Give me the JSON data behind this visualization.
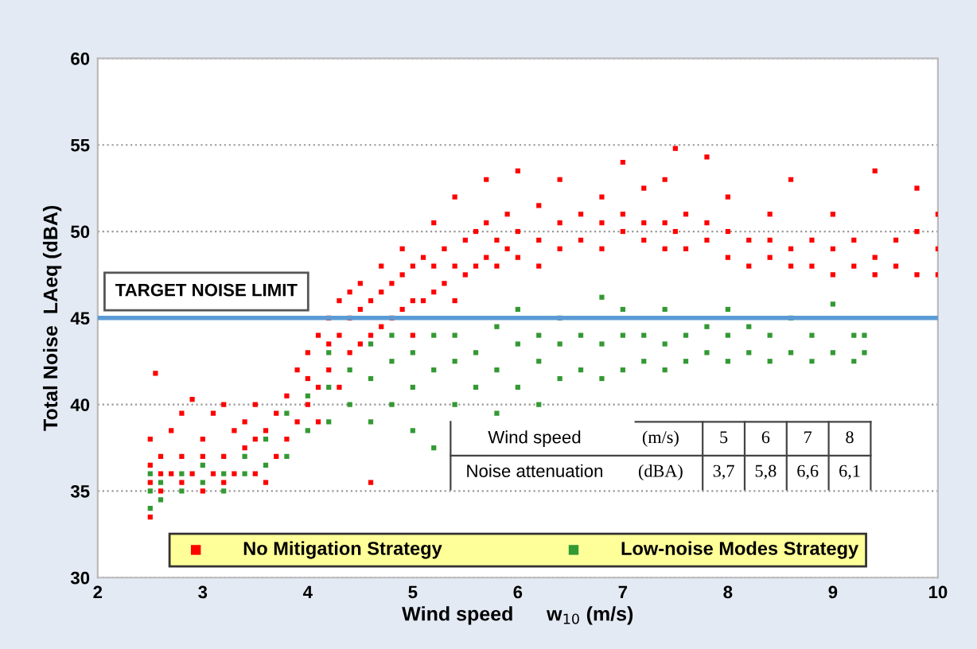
{
  "chart_data": {
    "type": "scatter",
    "xlabel": "Wind speed      w$_{10}$ (m/s)",
    "ylabel": "Total Noise  LAeq (dBA)",
    "xlim": [
      2,
      10
    ],
    "xticks": [
      2,
      3,
      4,
      5,
      6,
      7,
      8,
      9,
      10
    ],
    "ylim": [
      30,
      60
    ],
    "yticks": [
      30,
      35,
      40,
      45,
      50,
      55,
      60
    ],
    "grid": "y",
    "legend": "bottom",
    "marker": "square",
    "ref_lines": [
      {
        "axis": "y",
        "value": 45,
        "label": "TARGET NOISE LIMIT",
        "color": "#5b9bd5",
        "line_style": "solid"
      }
    ],
    "annotations": [
      "Wind speed",
      "(m/s)",
      "5",
      "6",
      "7",
      "8",
      "Noise attenuation",
      "(dBA)",
      "3,7",
      "5,8",
      "6,6",
      "6,1"
    ],
    "series": [
      {
        "name": "No Mitigation Strategy",
        "color": "#ff0000",
        "x": [
          2.5,
          2.5,
          2.5,
          2.5,
          2.55,
          2.6,
          2.6,
          2.6,
          2.7,
          2.7,
          2.8,
          2.8,
          2.8,
          2.9,
          2.9,
          3.0,
          3.0,
          3.0,
          3.1,
          3.1,
          3.2,
          3.2,
          3.2,
          3.3,
          3.3,
          3.4,
          3.4,
          3.5,
          3.5,
          3.5,
          3.6,
          3.6,
          3.7,
          3.7,
          3.8,
          3.8,
          3.9,
          3.9,
          4.0,
          4.0,
          4.0,
          4.1,
          4.1,
          4.1,
          4.2,
          4.2,
          4.2,
          4.3,
          4.3,
          4.3,
          4.4,
          4.4,
          4.4,
          4.5,
          4.5,
          4.5,
          4.6,
          4.6,
          4.6,
          4.7,
          4.7,
          4.7,
          4.8,
          4.8,
          4.9,
          4.9,
          4.9,
          5.0,
          5.0,
          5.0,
          5.1,
          5.1,
          5.2,
          5.2,
          5.2,
          5.3,
          5.3,
          5.4,
          5.4,
          5.4,
          5.5,
          5.5,
          5.6,
          5.6,
          5.7,
          5.7,
          5.7,
          5.8,
          5.8,
          5.9,
          5.9,
          6.0,
          6.0,
          6.0,
          6.2,
          6.2,
          6.2,
          6.4,
          6.4,
          6.4,
          6.6,
          6.6,
          6.8,
          6.8,
          6.8,
          7.0,
          7.0,
          7.0,
          7.2,
          7.2,
          7.2,
          7.4,
          7.4,
          7.4,
          7.5,
          7.5,
          7.6,
          7.6,
          7.8,
          7.8,
          7.8,
          8.0,
          8.0,
          8.0,
          8.2,
          8.2,
          8.4,
          8.4,
          8.4,
          8.6,
          8.6,
          8.6,
          8.8,
          8.8,
          9.0,
          9.0,
          9.0,
          9.2,
          9.2,
          9.4,
          9.4,
          9.4,
          9.6,
          9.6,
          9.8,
          9.8,
          9.8,
          10.0,
          10.0,
          10.0
        ],
        "values": [
          33.5,
          35.5,
          36.5,
          38,
          41.8,
          35,
          36,
          37,
          36,
          38.5,
          35.5,
          37,
          39.5,
          36,
          40.3,
          35,
          37,
          38,
          36,
          39.5,
          35.5,
          37,
          40,
          36,
          38.5,
          37.5,
          39,
          36,
          38,
          40,
          35.5,
          38.5,
          37,
          39.5,
          38,
          40.5,
          39,
          42,
          40,
          41.5,
          43,
          39,
          41,
          44,
          42,
          43.5,
          45,
          41,
          44,
          46,
          43,
          45,
          46.5,
          43.5,
          45.5,
          47,
          35.5,
          44,
          46,
          44.5,
          46.5,
          48,
          45,
          47,
          45.5,
          47.5,
          49,
          44,
          46,
          48,
          46,
          48.5,
          46.5,
          48,
          50.5,
          47,
          49,
          46,
          48,
          52,
          47.5,
          49.5,
          48,
          50,
          48.5,
          50.5,
          53,
          48,
          49.5,
          49,
          51,
          48.5,
          50,
          53.5,
          48,
          49.5,
          51.5,
          49,
          50.5,
          53,
          49.5,
          51,
          49,
          50.5,
          52,
          50,
          51,
          54,
          49.5,
          50.5,
          52.5,
          49,
          50.5,
          53,
          50,
          54.8,
          49,
          51,
          49.5,
          50.5,
          54.3,
          48.5,
          50,
          52,
          48,
          49.5,
          48.5,
          49.5,
          51,
          48,
          49,
          53,
          48,
          49.5,
          47.5,
          49,
          51,
          48,
          49.5,
          47.5,
          48.5,
          53.5,
          48,
          49.5,
          47.5,
          50,
          52.5,
          47.5,
          49,
          51
        ]
      },
      {
        "name": "Low-noise Modes Strategy",
        "color": "#339933",
        "x": [
          2.5,
          2.5,
          2.5,
          2.6,
          2.6,
          2.8,
          2.8,
          3.0,
          3.0,
          3.2,
          3.2,
          3.4,
          3.4,
          3.6,
          3.6,
          3.8,
          3.8,
          4.0,
          4.0,
          4.2,
          4.2,
          4.2,
          4.4,
          4.4,
          4.6,
          4.6,
          4.6,
          4.8,
          4.8,
          4.8,
          5.0,
          5.0,
          5.0,
          5.2,
          5.2,
          5.2,
          5.4,
          5.4,
          5.4,
          5.6,
          5.6,
          5.8,
          5.8,
          5.8,
          6.0,
          6.0,
          6.0,
          6.2,
          6.2,
          6.2,
          6.4,
          6.4,
          6.4,
          6.6,
          6.6,
          6.8,
          6.8,
          6.8,
          7.0,
          7.0,
          7.0,
          7.2,
          7.2,
          7.4,
          7.4,
          7.4,
          7.6,
          7.6,
          7.8,
          7.8,
          8.0,
          8.0,
          8.0,
          8.2,
          8.2,
          8.4,
          8.4,
          8.6,
          8.6,
          8.8,
          8.8,
          9.0,
          9.0,
          9.2,
          9.2,
          9.3,
          9.3
        ],
        "values": [
          34,
          35,
          36,
          34.5,
          35.5,
          35,
          36,
          35.5,
          36.5,
          35,
          36,
          36,
          37,
          36.5,
          38,
          37,
          39.5,
          38.5,
          40.5,
          39,
          41,
          43,
          40,
          42,
          39,
          41.5,
          43.5,
          40,
          42.5,
          44,
          38.5,
          41,
          43,
          37.5,
          42,
          44,
          40,
          42.5,
          44,
          41,
          43,
          39.5,
          42,
          44.5,
          41,
          43.5,
          45.5,
          40,
          42.5,
          44,
          41.5,
          43.5,
          45,
          42,
          44,
          41.5,
          43.5,
          46.2,
          42,
          44,
          45.5,
          42.5,
          44,
          42,
          43.5,
          45.5,
          42.5,
          44,
          43,
          44.5,
          42.5,
          44,
          45.5,
          43,
          44.5,
          42.5,
          44,
          43,
          45,
          42.5,
          44,
          43,
          45.8,
          42.5,
          44,
          43,
          44
        ]
      }
    ]
  }
}
